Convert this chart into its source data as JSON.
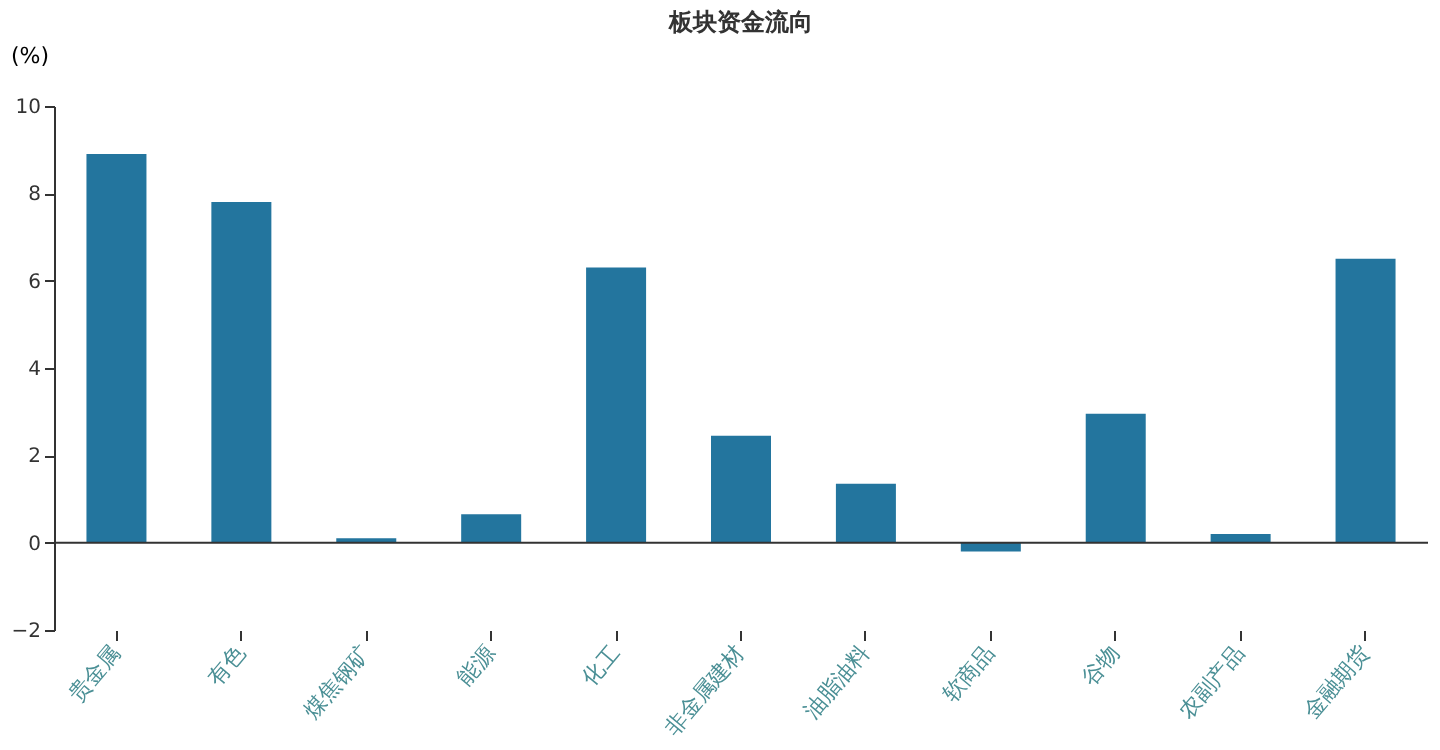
{
  "chart_data": {
    "type": "bar",
    "title": "板块资金流向",
    "ylabel": "(%)",
    "categories": [
      "贵金属",
      "有色",
      "煤焦钢矿",
      "能源",
      "化工",
      "非金属建材",
      "油脂油料",
      "软商品",
      "谷物",
      "农副产品",
      "金融期货"
    ],
    "values": [
      8.9,
      7.8,
      0.1,
      0.65,
      6.3,
      2.45,
      1.35,
      -0.2,
      2.95,
      0.2,
      6.5
    ],
    "color": "#23759e",
    "ylim": [
      -2,
      10
    ],
    "yticks": [
      -2,
      0,
      2,
      4,
      6,
      8,
      10
    ]
  }
}
